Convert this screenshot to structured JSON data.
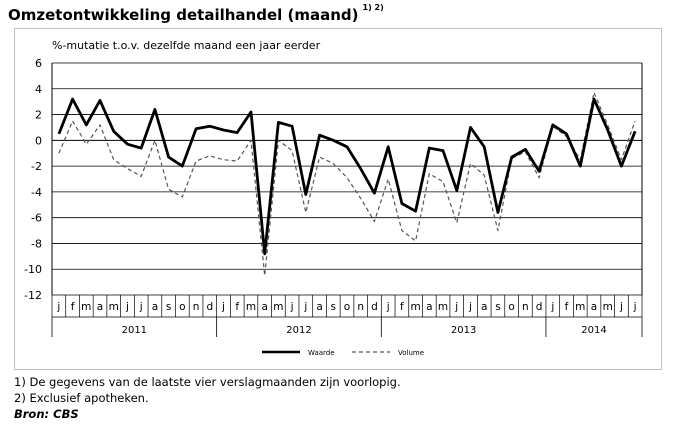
{
  "title": "Omzetontwikkeling detailhandel (maand)",
  "title_note": "1) 2)",
  "footnotes": [
    "1) De gegevens van de laatste vier verslagmaanden zijn voorlopig.",
    "2) Exclusief apotheken."
  ],
  "source": "Bron: CBS",
  "chart_data": {
    "type": "line",
    "ylabel": "%-mutatie t.o.v. dezelfde maand een jaar eerder",
    "ylim": [
      -12,
      6
    ],
    "yticks": [
      6,
      4,
      2,
      0,
      -2,
      -4,
      -6,
      -8,
      -10,
      -12
    ],
    "grid": true,
    "legend_position": "bottom-center",
    "months": [
      "j",
      "f",
      "m",
      "a",
      "m",
      "j",
      "j",
      "a",
      "s",
      "o",
      "n",
      "d",
      "j",
      "f",
      "m",
      "a",
      "m",
      "j",
      "j",
      "a",
      "s",
      "o",
      "n",
      "d",
      "j",
      "f",
      "m",
      "a",
      "m",
      "j",
      "j",
      "a",
      "s",
      "o",
      "n",
      "d",
      "j",
      "f",
      "m",
      "a",
      "m",
      "j",
      "j"
    ],
    "years": [
      {
        "label": "2011",
        "months": 12
      },
      {
        "label": "2012",
        "months": 12
      },
      {
        "label": "2013",
        "months": 12
      },
      {
        "label": "2014",
        "months": 7
      }
    ],
    "series": [
      {
        "name": "Waarde",
        "color": "#000000",
        "style": "solid",
        "values": [
          0.5,
          3.2,
          1.2,
          3.1,
          0.7,
          -0.3,
          -0.6,
          2.4,
          -1.3,
          -2.0,
          0.9,
          1.1,
          0.8,
          0.6,
          2.2,
          -8.8,
          1.4,
          1.1,
          -4.2,
          0.4,
          0.0,
          -0.5,
          -2.2,
          -4.1,
          -0.5,
          -4.9,
          -5.5,
          -0.6,
          -0.8,
          -3.9,
          1.0,
          -0.5,
          -5.6,
          -1.3,
          -0.7,
          -2.4,
          1.2,
          0.5,
          -2.0,
          3.2,
          0.8,
          -2.0,
          0.7
        ]
      },
      {
        "name": "Volume",
        "color": "#555555",
        "style": "dashed",
        "values": [
          -1.0,
          1.5,
          -0.3,
          1.2,
          -1.5,
          -2.2,
          -2.8,
          0.0,
          -3.8,
          -4.4,
          -1.6,
          -1.2,
          -1.5,
          -1.6,
          0.0,
          -10.5,
          0.0,
          -0.8,
          -5.6,
          -1.3,
          -1.8,
          -2.9,
          -4.5,
          -6.3,
          -3.0,
          -7.0,
          -7.8,
          -2.6,
          -3.2,
          -6.4,
          -1.8,
          -2.7,
          -7.0,
          -1.4,
          -0.9,
          -2.9,
          1.1,
          0.3,
          -1.5,
          3.7,
          1.2,
          -1.5,
          1.5
        ]
      }
    ]
  }
}
